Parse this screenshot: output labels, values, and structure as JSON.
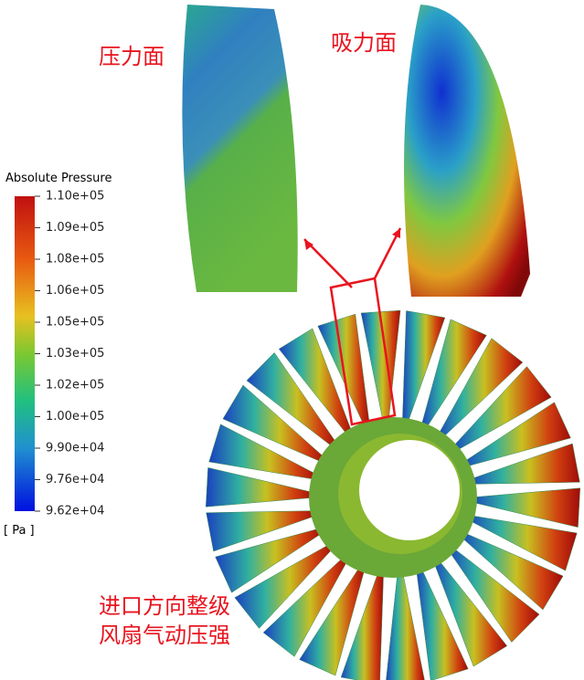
{
  "labels": {
    "pressure_side": "压力面",
    "suction_side": "吸力面"
  },
  "legend": {
    "title": "Absolute Pressure",
    "unit": "[ Pa ]",
    "ticks": [
      "1.10e+05",
      "1.09e+05",
      "1.08e+05",
      "1.06e+05",
      "1.05e+05",
      "1.03e+05",
      "1.02e+05",
      "1.00e+05",
      "9.90e+04",
      "9.76e+04",
      "9.62e+04"
    ]
  },
  "caption": {
    "lines": [
      "进口方向整级",
      "风扇气动压强"
    ]
  }
}
